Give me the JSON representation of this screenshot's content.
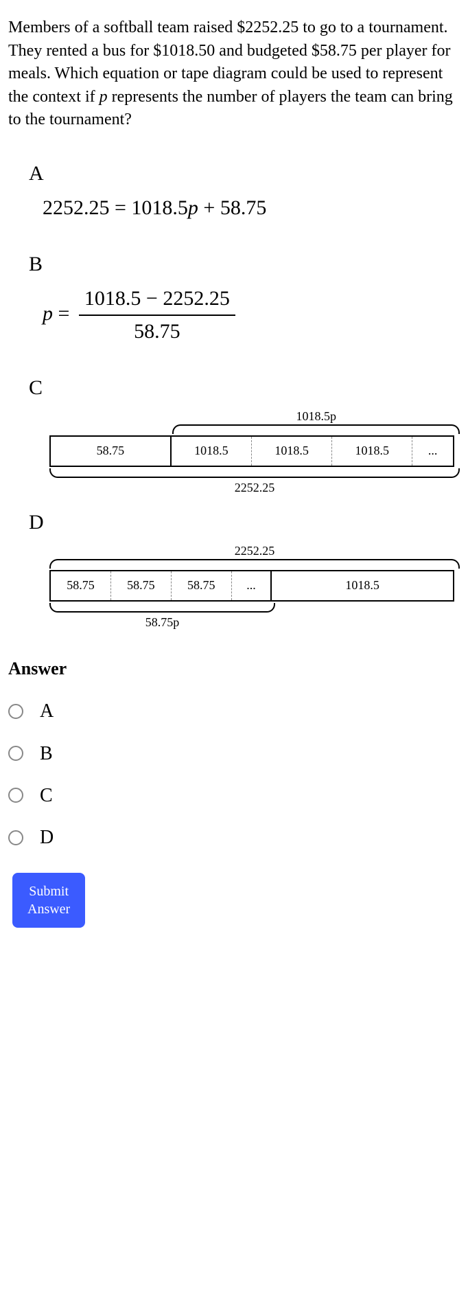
{
  "question": {
    "text_before_var": "Members of a softball team raised $2252.25 to go to a tournament. They rented a bus for $1018.50 and budgeted $58.75 per player for meals. Which equation or tape diagram could be used to represent the context if ",
    "variable": "p",
    "text_after_var": " represents the number of players the team can bring to the tournament?"
  },
  "options": {
    "A": {
      "label": "A",
      "equation": {
        "lhs": "2252.25",
        "eq": " = ",
        "rhs_coef": "1018.5",
        "rhs_var": "p",
        "plus": " + ",
        "rhs_const": "58.75"
      }
    },
    "B": {
      "label": "B",
      "equation": {
        "lhs_var": "p",
        "eq": " = ",
        "num_left": "1018.5",
        "minus": " − ",
        "num_right": "2252.25",
        "den": "58.75"
      }
    },
    "C": {
      "label": "C",
      "tape": {
        "cells": [
          {
            "text": "58.75",
            "width_pct": 30,
            "solid": true
          },
          {
            "text": "1018.5",
            "width_pct": 20,
            "solid": false
          },
          {
            "text": "1018.5",
            "width_pct": 20,
            "solid": false
          },
          {
            "text": "1018.5",
            "width_pct": 20,
            "solid": false
          },
          {
            "text": "...",
            "width_pct": 10,
            "solid": false
          }
        ],
        "top_brace": {
          "label": "1018.5p",
          "left_pct": 30,
          "width_pct": 70
        },
        "bottom_brace": {
          "label": "2252.25",
          "left_pct": 0,
          "width_pct": 100
        }
      }
    },
    "D": {
      "label": "D",
      "tape": {
        "cells": [
          {
            "text": "58.75",
            "width_pct": 15,
            "solid": false
          },
          {
            "text": "58.75",
            "width_pct": 15,
            "solid": false
          },
          {
            "text": "58.75",
            "width_pct": 15,
            "solid": false
          },
          {
            "text": "...",
            "width_pct": 10,
            "solid": false
          },
          {
            "text": "1018.5",
            "width_pct": 45,
            "solid": true,
            "leading_solid": true
          }
        ],
        "top_brace": {
          "label": "2252.25",
          "left_pct": 0,
          "width_pct": 100
        },
        "bottom_brace": {
          "label": "58.75p",
          "left_pct": 0,
          "width_pct": 55
        }
      }
    }
  },
  "answer": {
    "heading": "Answer",
    "choices": [
      "A",
      "B",
      "C",
      "D"
    ],
    "submit_label": "Submit\nAnswer"
  },
  "colors": {
    "accent": "#3b5bff",
    "text": "#000000",
    "background": "#ffffff",
    "radio_border": "#888888"
  }
}
